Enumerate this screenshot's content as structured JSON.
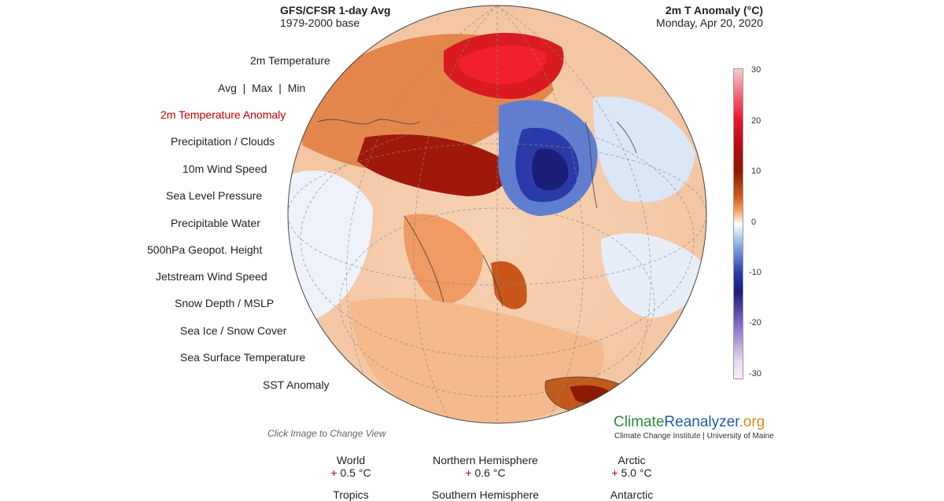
{
  "header": {
    "left_title": "GFS/CFSR 1-day Avg",
    "left_subtitle": "1979-2000 base",
    "right_title": "2m T Anomaly (°C)",
    "right_subtitle": "Monday, Apr 20, 2020"
  },
  "menu": {
    "items": [
      {
        "label": "2m Temperature",
        "active": false
      },
      {
        "label": "Avg  |  Max  |  Min",
        "active": false
      },
      {
        "label": "2m Temperature Anomaly",
        "active": true
      },
      {
        "label": "Precipitation / Clouds",
        "active": false
      },
      {
        "label": "10m Wind Speed",
        "active": false
      },
      {
        "label": "Sea Level Pressure",
        "active": false
      },
      {
        "label": "Precipitable Water",
        "active": false
      },
      {
        "label": "500hPa Geopot. Height",
        "active": false
      },
      {
        "label": "Jetstream Wind Speed",
        "active": false
      },
      {
        "label": "Snow Depth / MSLP",
        "active": false
      },
      {
        "label": "Sea Ice / Snow Cover",
        "active": false
      },
      {
        "label": "Sea Surface Temperature",
        "active": false
      },
      {
        "label": "SST Anomaly",
        "active": false
      }
    ]
  },
  "colorbar": {
    "ticks": [
      "30",
      "20",
      "10",
      "0",
      "-10",
      "-20",
      "-30"
    ]
  },
  "map": {
    "projection": "orthographic globe centered on Asia",
    "colors": {
      "ocean": "#f4c7a6",
      "warm": "#d2581a",
      "hot": "#e8192d",
      "cold": "#1a1e78",
      "neutral": "#e6f0fa"
    }
  },
  "footer": {
    "click_note": "Click Image to Change View",
    "brand_climate": "Climate",
    "brand_reanalyzer": "Reanalyzer",
    "brand_org": ".org",
    "brand_sub": "Climate Change Institute | University of Maine"
  },
  "stats": [
    {
      "name": "World",
      "sign": "+",
      "value": "0.5 °C"
    },
    {
      "name": "Northern Hemisphere",
      "sign": "+",
      "value": "0.6 °C"
    },
    {
      "name": "Arctic",
      "sign": "+",
      "value": "5.0 °C"
    }
  ],
  "stats_row2": [
    "Tropics",
    "Southern Hemisphere",
    "Antarctic"
  ]
}
